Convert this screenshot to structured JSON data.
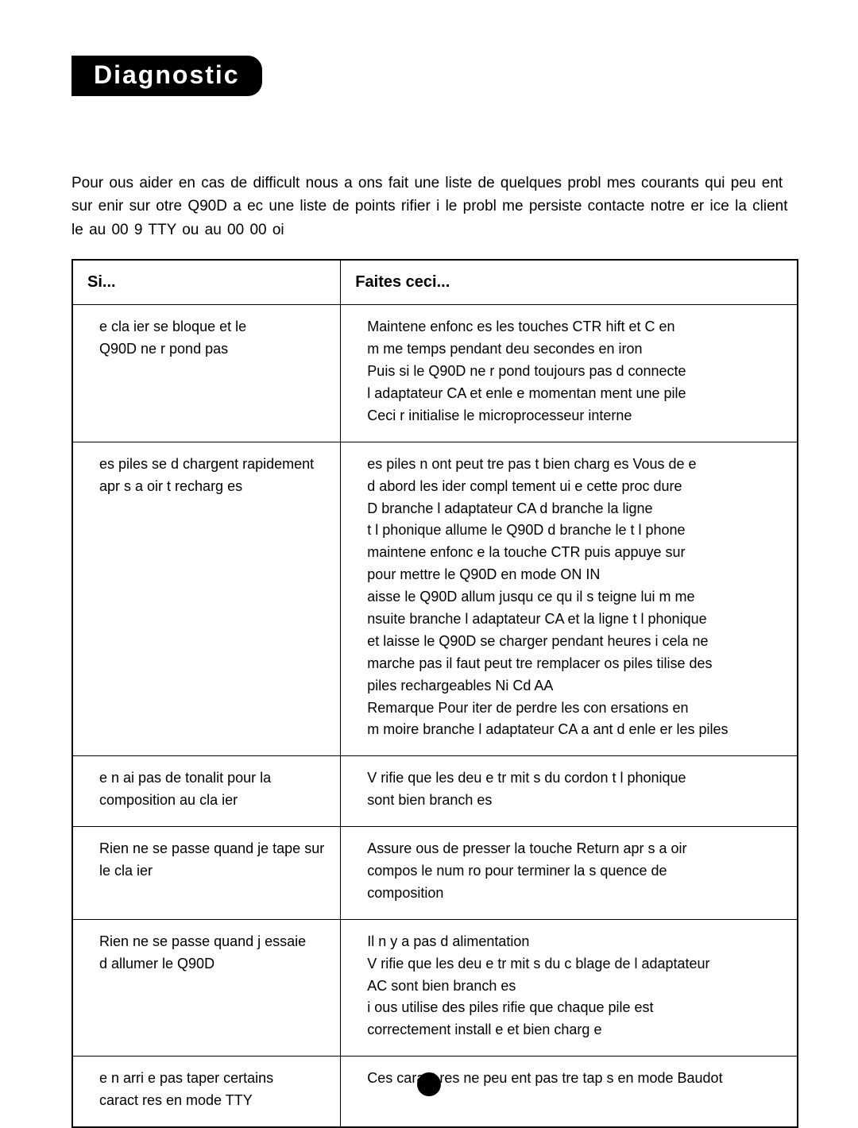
{
  "heading": "Diagnostic",
  "intro": "Pour   ous aider en cas de difficult              nous a ons fait une liste de quelques probl                 mes courants qui peu ent sur enir sur   otre Q90D a ec une liste de points                                   rifier   i le probl         me persiste contacte   notre   er ice               la client      le au   00           9  TTY   ou au   00         00     oi",
  "cols": {
    "if": "Si...",
    "do": "Faites ceci..."
  },
  "rows": [
    {
      "if": "  e cla ier se bloque et le\nQ90D ne r       pond pas",
      "do": "    Maintene  enfonc         es les touches CTR    hift et    C en\nm   me temps pendant deu   secondes en iron\n    Puis si le Q90D ne r          pond toujours pas d          connecte\nl adaptateur CA et enle e   momentan                  ment une pile\nCeci r      initialise le microprocesseur interne"
    },
    {
      "if": "  es piles se d      chargent rapidement\napr    s a oir     t    recharg     es",
      "do": "  es piles n    ont peut      tre pas      t   bien charg     es Vous de e\nd abord les  ider compl          tement   ui e cette proc          dure\n    D     branche  l     adaptateur CA d         branche  la ligne\nt  l  phonique allume  le Q90D d            branche  le t       l  phone\nmaintene  enfonc       e la touche CTR   puis appuye  sur\npour mettre le Q90D en mode ON  IN\n     aisse  le Q90D allum            jusqu    ce qu il s   teigne lui m       me\n    nsuite branche  l       adaptateur CA et la ligne t           l  phonique\net laisse  le Q90D se charger pendant     heures  i cela ne\nmarche pas il faut peut         tre remplacer  os piles   tilise  des\npiles rechargeables Ni Cd AA\nRemarque   Pour          iter de perdre les con ersations en\nm   moire branche  l       adaptateur CA a ant d          enle er les piles"
    },
    {
      "if": "  e n  ai pas de tonalit       pour la\ncomposition au cla ier",
      "do": "V    rifie  que les deu  e tr          mit    s du cordon t       l  phonique\nsont bien branch       es"
    },
    {
      "if": "Rien ne se passe quand je tape sur\nle cla ier",
      "do": "Assure   ous de presser la touche Return apr                    s a oir\ncompos       le num     ro pour terminer la s         quence de\ncomposition"
    },
    {
      "if": "Rien ne se passe quand j         essaie\nd allumer le Q90D",
      "do": "Il n  y a pas d   alimentation\n    V    rifie  que les deu  e tr          mit    s du c   blage de l    adaptateur\nAC sont bien branch         es\n    i   ous utilise  des piles             rifie  que chaque pile est\ncorrectement install          e et bien charg        e"
    },
    {
      "if": "  e n  arri e pas       taper certains\ncaract     res en mode TTY",
      "do": "Ces caract       res ne peu ent pas          tre tap      s en mode Baudot"
    }
  ]
}
